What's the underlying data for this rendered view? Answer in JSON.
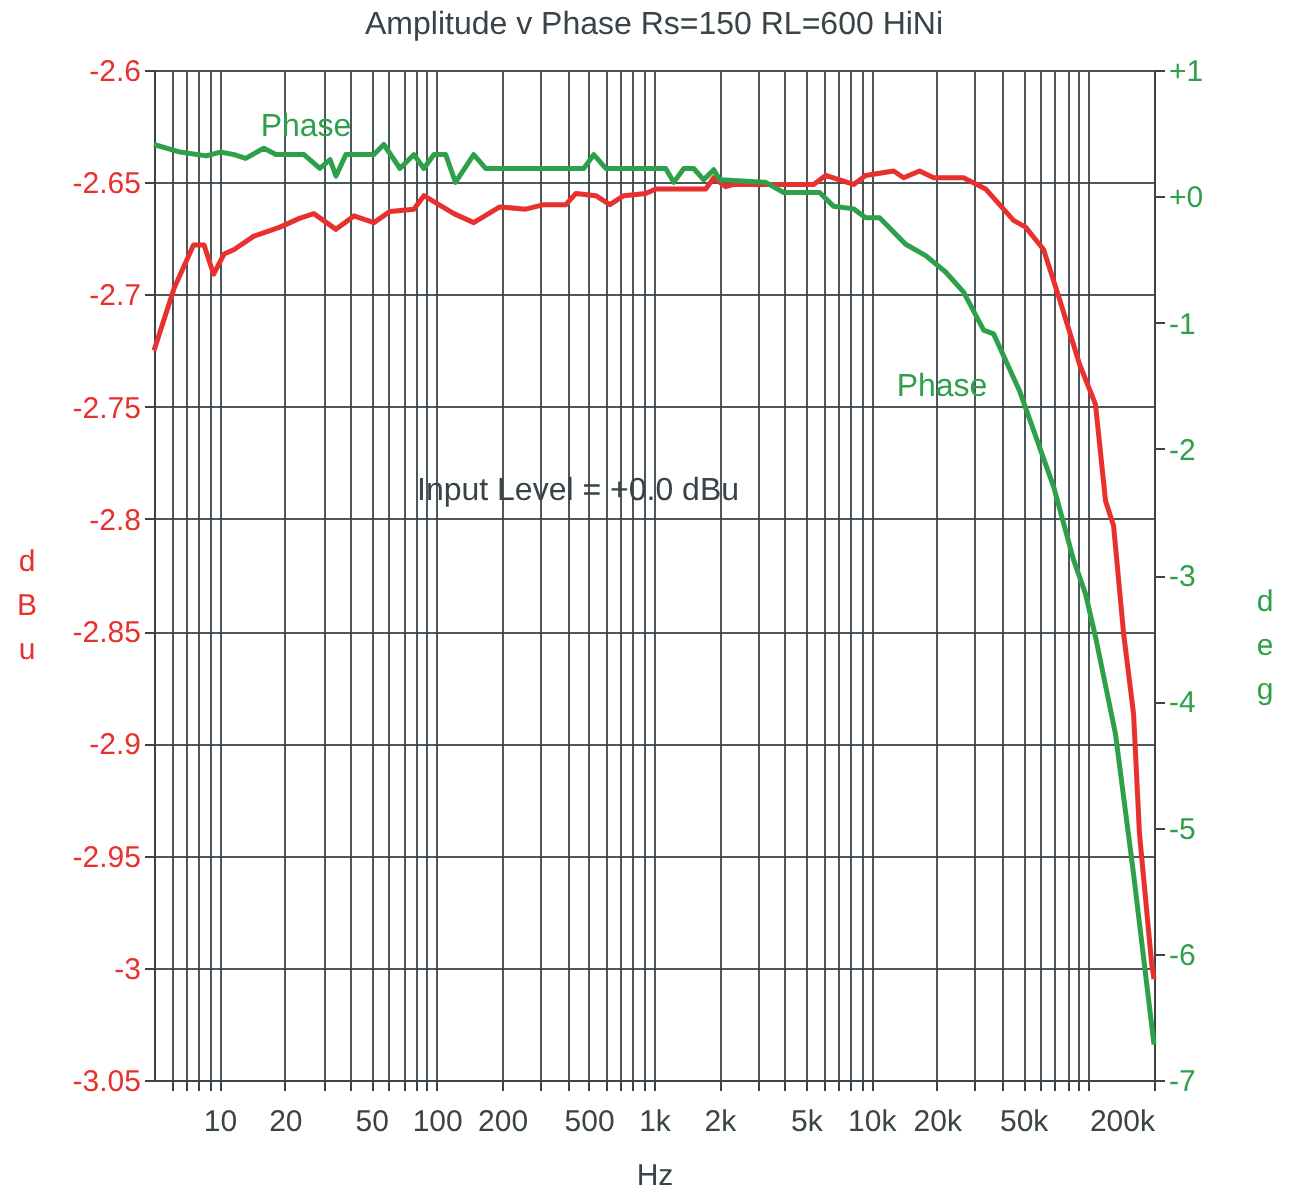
{
  "chart_data": {
    "type": "line",
    "title": "Amplitude v Phase   Rs=150 RL=600   HiNi",
    "xlabel": "Hz",
    "ylabel": "dBu",
    "y2label": "deg",
    "log": "x",
    "grid": true,
    "marker": "none",
    "line_style": "solid",
    "xlim": [
      5,
      200000
    ],
    "xticks": [
      {
        "value": 6,
        "label": null
      },
      {
        "value": 7,
        "label": null
      },
      {
        "value": 8,
        "label": null
      },
      {
        "value": 9,
        "label": null
      },
      10,
      20,
      {
        "value": 30,
        "label": null
      },
      {
        "value": 40,
        "label": null
      },
      50,
      {
        "value": 60,
        "label": null
      },
      {
        "value": 70,
        "label": null
      },
      {
        "value": 80,
        "label": null
      },
      {
        "value": 90,
        "label": null
      },
      100,
      200,
      {
        "value": 300,
        "label": null
      },
      {
        "value": 400,
        "label": null
      },
      500,
      {
        "value": 600,
        "label": null
      },
      {
        "value": 700,
        "label": null
      },
      {
        "value": 800,
        "label": null
      },
      {
        "value": 900,
        "label": null
      },
      {
        "value": 1000,
        "label": "1k"
      },
      {
        "value": 2000,
        "label": "2k"
      },
      {
        "value": 3000,
        "label": null
      },
      {
        "value": 4000,
        "label": null
      },
      {
        "value": 5000,
        "label": "5k"
      },
      {
        "value": 6000,
        "label": null
      },
      {
        "value": 7000,
        "label": null
      },
      {
        "value": 8000,
        "label": null
      },
      {
        "value": 9000,
        "label": null
      },
      {
        "value": 10000,
        "label": "10k"
      },
      {
        "value": 20000,
        "label": "20k"
      },
      {
        "value": 30000,
        "label": null
      },
      {
        "value": 40000,
        "label": null
      },
      {
        "value": 50000,
        "label": "50k"
      },
      {
        "value": 60000,
        "label": null
      },
      {
        "value": 70000,
        "label": null
      },
      {
        "value": 80000,
        "label": null
      },
      {
        "value": 90000,
        "label": null
      },
      {
        "value": 100000,
        "label": null
      },
      {
        "value": 200000,
        "label": "200k"
      }
    ],
    "ylim": [
      -3.05,
      -2.6
    ],
    "yticks": [
      -3.05,
      -3,
      -2.95,
      -2.9,
      -2.85,
      -2.8,
      -2.75,
      -2.7,
      -2.65,
      -2.6
    ],
    "y2lim": [
      -7,
      1
    ],
    "y2ticks": [
      -7,
      -6,
      -5,
      -4,
      -3,
      -2,
      -1,
      {
        "value": 0,
        "label": "+0"
      },
      {
        "value": 1,
        "label": "+1"
      }
    ],
    "annotations": [
      "Input Level = +0.0 dBu",
      "Phase",
      "Phase"
    ],
    "series": [
      {
        "color": "#e8312f",
        "x": [
          5,
          6.2,
          7.6,
          8.5,
          9.4,
          10.5,
          11.7,
          14.4,
          19,
          23.5,
          27.2,
          34.4,
          41.6,
          51.4,
          61,
          78.5,
          87.3,
          120,
          148,
          195,
          257,
          311,
          393,
          437,
          540,
          627,
          726,
          916,
          1019,
          1730,
          1883,
          2138,
          2328,
          3266,
          5431,
          6164,
          8298,
          9418,
          12670,
          14090,
          16680,
          19370,
          26600,
          33560,
          45160,
          51270,
          62080,
          73450,
          90790,
          107600,
          119700,
          130300,
          144900,
          161100,
          171400,
          195000,
          200000
        ],
        "values": [
          -2.725,
          -2.697,
          -2.678,
          -2.678,
          -2.691,
          -2.682,
          -2.68,
          -2.674,
          -2.67,
          -2.666,
          -2.664,
          -2.671,
          -2.665,
          -2.668,
          -2.663,
          -2.662,
          -2.656,
          -2.664,
          -2.668,
          -2.661,
          -2.662,
          -2.66,
          -2.66,
          -2.655,
          -2.656,
          -2.66,
          -2.656,
          -2.655,
          -2.653,
          -2.653,
          -2.648,
          -2.652,
          -2.651,
          -2.651,
          -2.651,
          -2.647,
          -2.651,
          -2.647,
          -2.645,
          -2.648,
          -2.645,
          -2.648,
          -2.648,
          -2.653,
          -2.667,
          -2.67,
          -2.68,
          -2.702,
          -2.731,
          -2.749,
          -2.792,
          -2.803,
          -2.851,
          -2.887,
          -2.94,
          -2.998,
          -3.005
        ]
      },
      {
        "color": "#2ea04a",
        "axis": "y2",
        "x": [
          5,
          6.6,
          8.7,
          10.1,
          11.7,
          13.2,
          16,
          18.2,
          24.5,
          29,
          32.3,
          34.4,
          38.2,
          51.4,
          57.1,
          67.8,
          78.5,
          87.3,
          97.1,
          110,
          122,
          148,
          168,
          475,
          528,
          600,
          1132,
          1233,
          1371,
          1524,
          1694,
          1883,
          2008,
          3266,
          3953,
          5781,
          6713,
          8298,
          9418,
          10920,
          14390,
          17790,
          21980,
          26600,
          32880,
          36540,
          48080,
          69020,
          85290,
          96820,
          107600,
          133000,
          161100,
          200000
        ],
        "values": [
          0.41,
          0.35,
          0.32,
          0.35,
          0.33,
          0.3,
          0.38,
          0.33,
          0.33,
          0.22,
          0.29,
          0.16,
          0.33,
          0.33,
          0.41,
          0.22,
          0.33,
          0.22,
          0.33,
          0.33,
          0.11,
          0.33,
          0.22,
          0.22,
          0.33,
          0.22,
          0.22,
          0.11,
          0.22,
          0.22,
          0.13,
          0.21,
          0.13,
          0.11,
          0.03,
          0.03,
          -0.08,
          -0.1,
          -0.17,
          -0.17,
          -0.38,
          -0.47,
          -0.6,
          -0.76,
          -1.06,
          -1.09,
          -1.54,
          -2.3,
          -2.88,
          -3.15,
          -3.49,
          -4.26,
          -5.37,
          -6.72
        ]
      }
    ]
  }
}
